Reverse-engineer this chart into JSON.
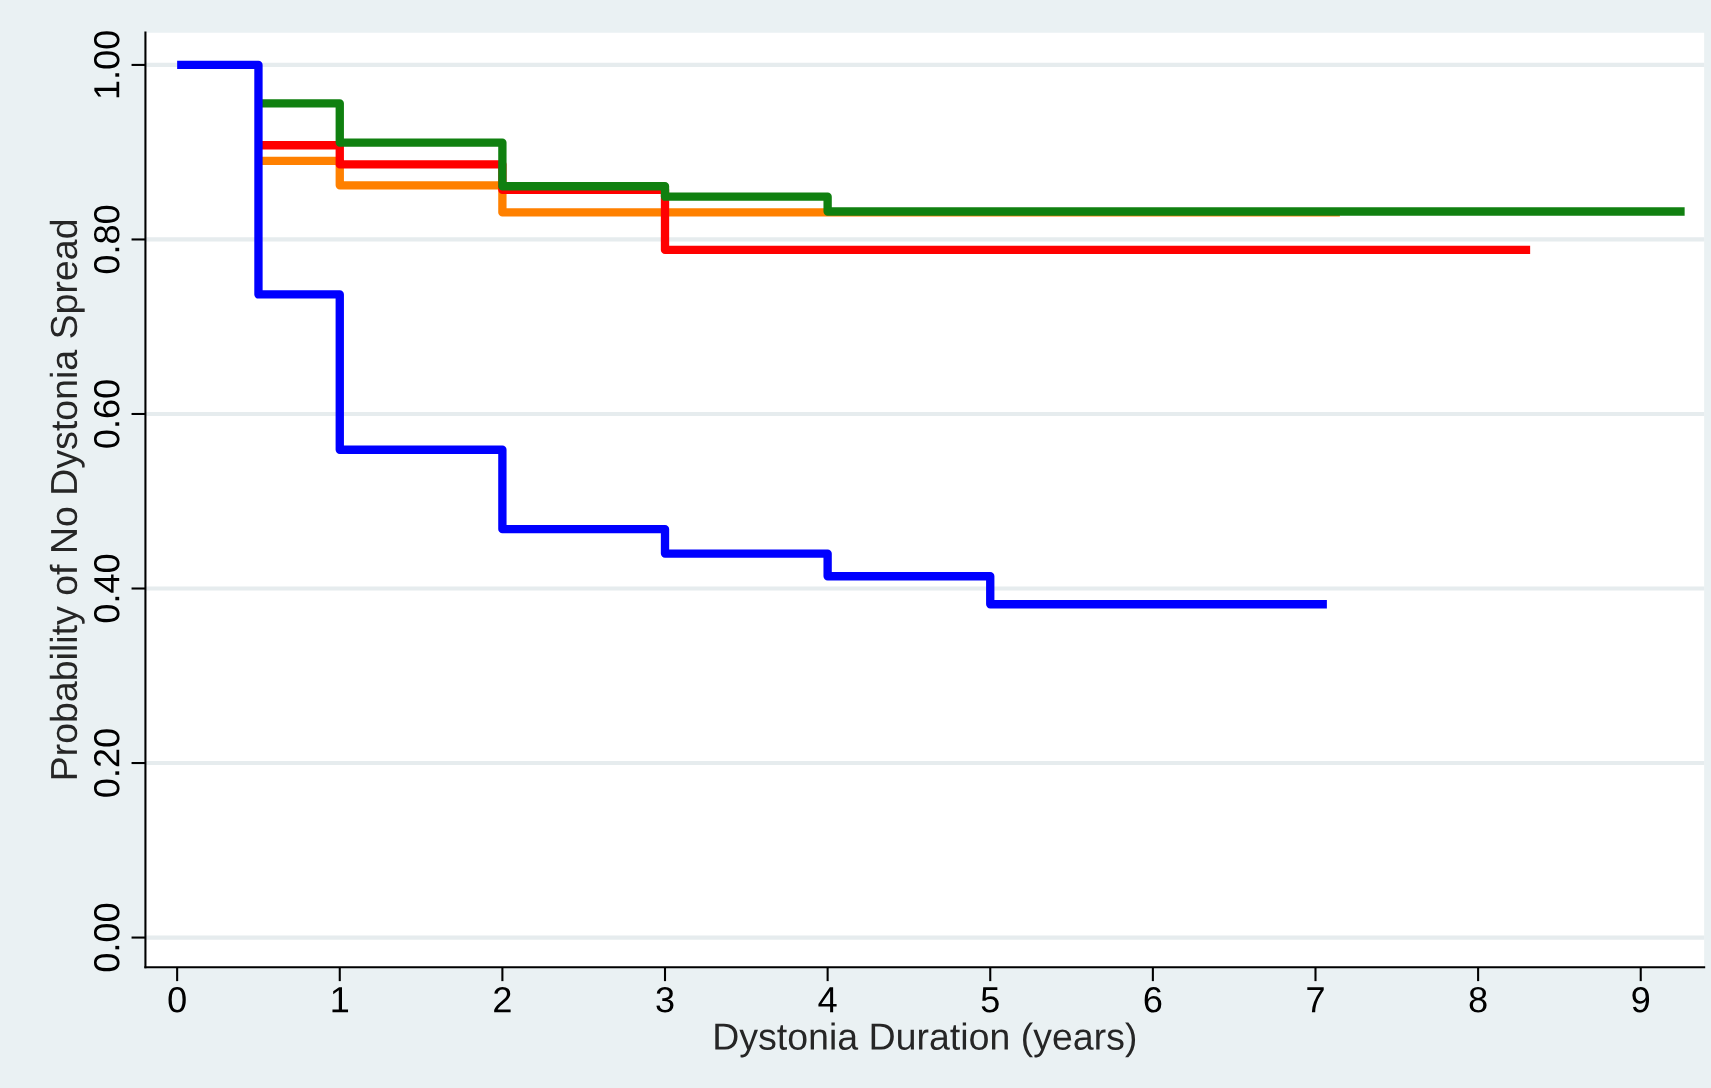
{
  "chart_data": {
    "type": "step",
    "xlabel": "Dystonia Duration (years)",
    "ylabel": "Probability of No Dystonia Spread",
    "xlim": [
      -0.195,
      9.39
    ],
    "ylim": [
      -0.034,
      1.037
    ],
    "xticks": [
      0,
      1,
      2,
      3,
      4,
      5,
      6,
      7,
      8,
      9
    ],
    "yticks": [
      {
        "value": 0,
        "label": "0.00"
      },
      {
        "value": 0.2,
        "label": "0.20"
      },
      {
        "value": 0.4,
        "label": "0.40"
      },
      {
        "value": 0.6,
        "label": "0.60"
      },
      {
        "value": 0.8,
        "label": "0.80"
      },
      {
        "value": 1.0,
        "label": "1.00"
      }
    ],
    "grid": "y",
    "legend": false,
    "marker": "none",
    "line_style": "solid",
    "series": [
      {
        "color": "#ff8000",
        "x": [
          0.5,
          1,
          2,
          7.15
        ],
        "values": [
          0.89,
          0.862,
          0.831,
          0.831
        ]
      },
      {
        "color": "#ff0000",
        "x": [
          0.5,
          1,
          2,
          3,
          8.32
        ],
        "values": [
          0.908,
          0.886,
          0.857,
          0.788,
          0.788
        ]
      },
      {
        "color": "#108010",
        "x": [
          0.5,
          1,
          2,
          3,
          4,
          9.27
        ],
        "values": [
          0.956,
          0.911,
          0.861,
          0.849,
          0.832,
          0.832
        ]
      },
      {
        "color": "#0000ff",
        "x": [
          0,
          0.5,
          1,
          2,
          3,
          4,
          5,
          7.07
        ],
        "values": [
          1.0,
          0.737,
          0.559,
          0.468,
          0.44,
          0.414,
          0.382,
          0.382
        ]
      }
    ]
  }
}
